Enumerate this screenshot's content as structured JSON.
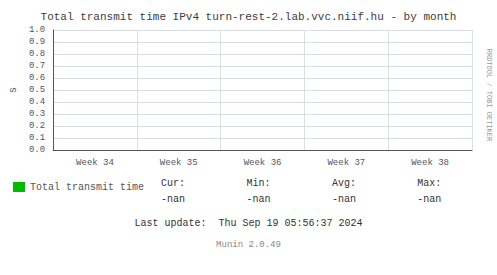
{
  "chart_data": {
    "type": "line",
    "title": "Total transmit time IPv4 turn-rest-2.lab.vvc.niif.hu - by month",
    "ylabel": "s",
    "categories": [
      "Week 34",
      "Week 35",
      "Week 36",
      "Week 37",
      "Week 38"
    ],
    "series": [
      {
        "name": "Total transmit time",
        "color": "#00bb00",
        "values": [
          null,
          null,
          null,
          null,
          null
        ]
      }
    ],
    "ylim": [
      0.0,
      1.0
    ],
    "yticks": [
      {
        "value": 0,
        "label": "0.0"
      },
      0.1,
      0.2,
      0.3,
      0.4,
      0.5,
      0.6,
      0.7,
      0.8,
      0.9,
      {
        "value": 1,
        "label": "1.0"
      }
    ],
    "grid": true,
    "legend": "bottom",
    "annotations": [
      "Cur:",
      "Min:",
      "Avg:",
      "Max:",
      "-nan",
      "-nan",
      "-nan",
      "-nan",
      "Last update:  Thu Sep 19 05:56:37 2024",
      "Munin 2.0.49",
      "RRDTOOL / TOBI OETIKER"
    ]
  }
}
